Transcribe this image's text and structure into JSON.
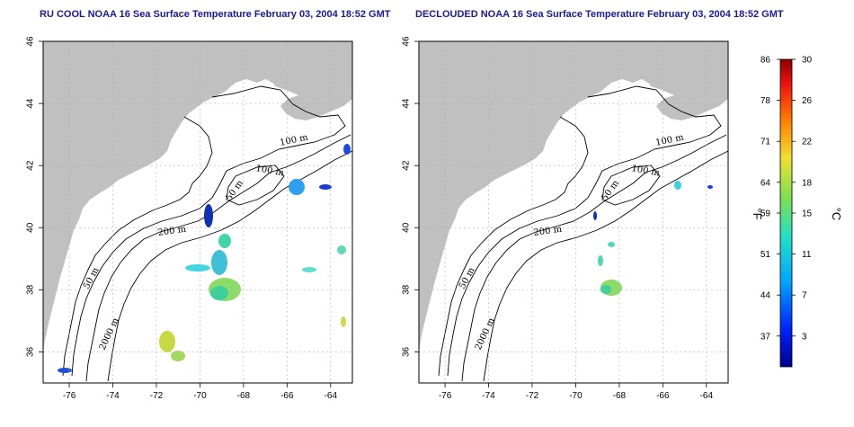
{
  "titles": {
    "left": "RU COOL NOAA 16 Sea Surface Temperature February 03, 2004 18:52 GMT",
    "right": "DECLOUDED NOAA 16 Sea Surface Temperature February 03, 2004 18:52 GMT"
  },
  "axes": {
    "lon_ticks": [
      -76,
      -74,
      -72,
      -70,
      -68,
      -66,
      -64
    ],
    "lat_ticks": [
      36,
      38,
      40,
      42,
      44,
      46
    ],
    "lon_range": [
      -77.2,
      -63.0
    ],
    "lat_range": [
      35.0,
      46.0
    ]
  },
  "contours": {
    "labels": [
      "100 m",
      "100 m",
      "50 m",
      "200 m",
      "50 m",
      "2000 m"
    ]
  },
  "colorbar": {
    "fahrenheit_ticks": [
      "86",
      "78",
      "71",
      "64",
      "59",
      "51",
      "44",
      "37"
    ],
    "celsius_ticks": [
      "30",
      "26",
      "22",
      "18",
      "15",
      "11",
      "7",
      "3"
    ],
    "fahrenheit_unit": "°F",
    "celsius_unit": "°C",
    "range_c": [
      0,
      30
    ]
  },
  "colors": {
    "land": "#c0c0c0",
    "title": "#1a1a9a",
    "grid": "#b0b0b0"
  }
}
